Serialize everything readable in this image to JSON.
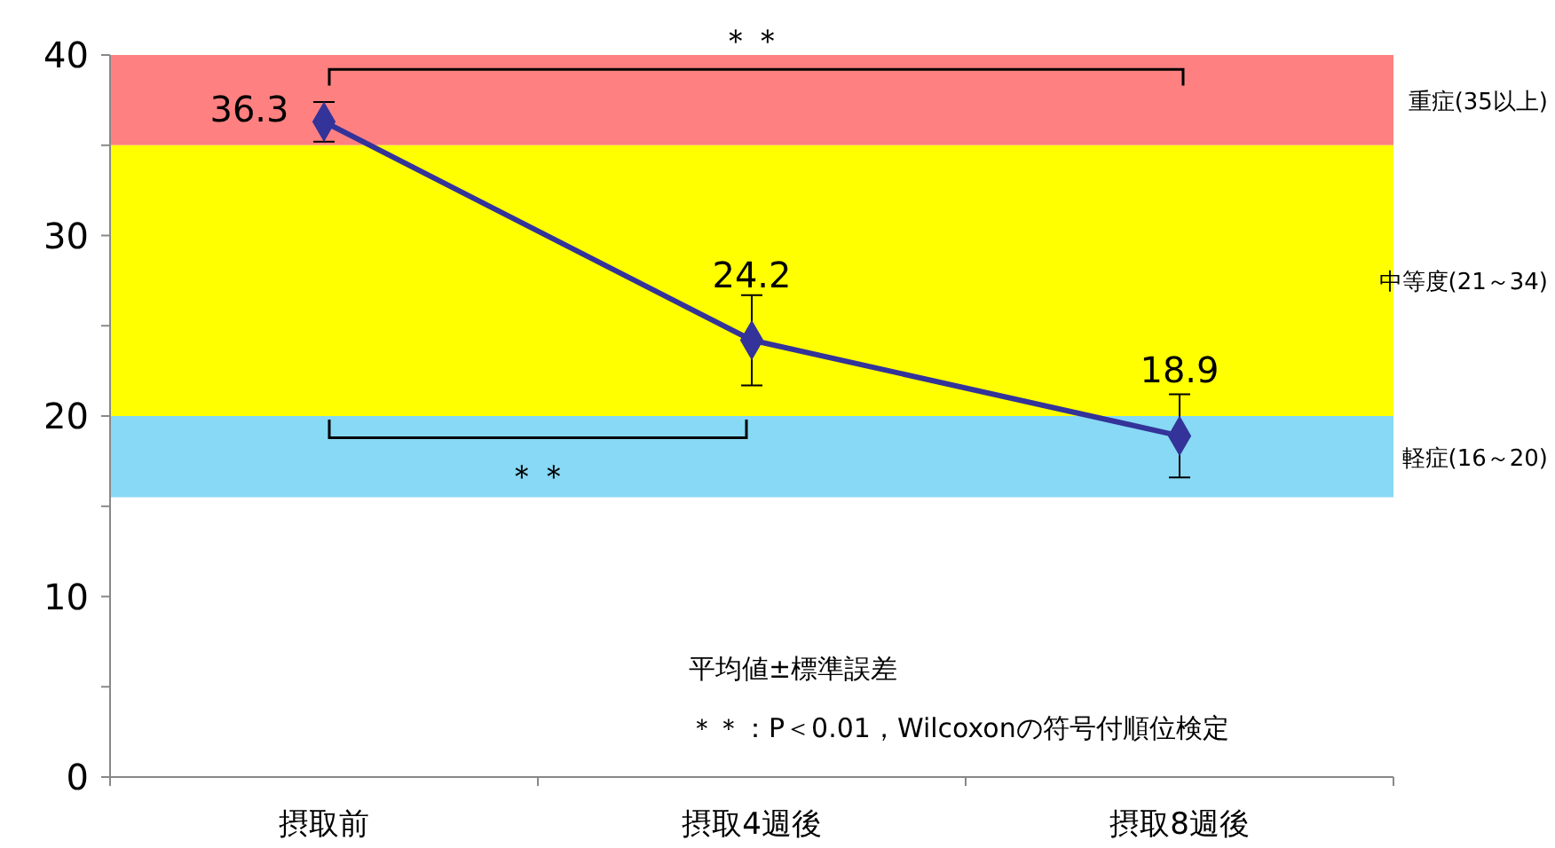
{
  "chart_data": {
    "type": "line",
    "categories": [
      "摂取前",
      "摂取4週後",
      "摂取8週後"
    ],
    "series": [
      {
        "color": "#333399",
        "values": [
          36.3,
          24.2,
          18.9
        ],
        "errors": [
          1.1,
          2.5,
          2.3
        ]
      }
    ],
    "ylim": [
      0,
      40
    ],
    "yticks": [
      0,
      {
        "value": 5,
        "label": null
      },
      10,
      {
        "value": 15,
        "label": null
      },
      20,
      {
        "value": 25,
        "label": null
      },
      30,
      {
        "value": 35,
        "label": null
      },
      40
    ],
    "bands": [
      {
        "axis": "y",
        "from": 35,
        "to": 40,
        "label": "重症(35以上)",
        "color": "#ff8080"
      },
      {
        "axis": "y",
        "from": 20,
        "to": 35,
        "label": "中等度(21～34)",
        "color": "#ffff00"
      },
      {
        "axis": "y",
        "from": 15.5,
        "to": 20,
        "label": "軽症(16～20)",
        "color": "#87d9f5"
      }
    ],
    "annotations": [
      "＊＊",
      "＊＊",
      "平均値±標準誤差",
      "＊＊：P＜0.01，Wilcoxonの符号付順位検定"
    ],
    "data_labels": true,
    "marker": "diamond",
    "line_style": "solid"
  }
}
